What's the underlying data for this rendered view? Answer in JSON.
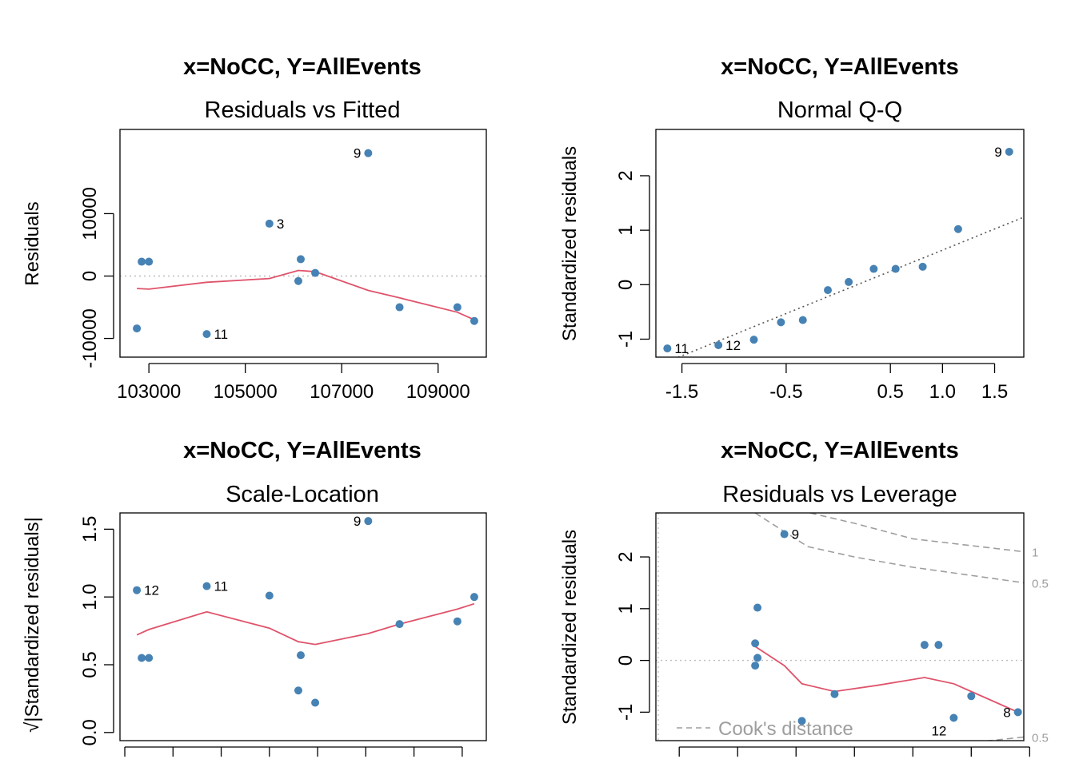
{
  "colors": {
    "points": "#4682b4",
    "smooth": "#df536b",
    "ref": "#bebebe",
    "qq": "#555555",
    "cook": "#9e9e9e"
  },
  "chart_data": [
    {
      "type": "scatter",
      "title": "x=NoCC, Y=AllEvents",
      "subtitle": "Residuals vs Fitted",
      "xlabel": "",
      "ylabel": "Residuals",
      "xlim": [
        102400,
        110000
      ],
      "ylim": [
        -13000,
        23500
      ],
      "xticks": [
        103000,
        105000,
        107000,
        109000
      ],
      "xtick_labels": [
        "103000",
        "105000",
        "107000",
        "109000"
      ],
      "yticks": [
        -10000,
        0,
        10000
      ],
      "ytick_labels": [
        "-10000",
        "0",
        "10000"
      ],
      "points": [
        {
          "x": 102750,
          "y": -8400,
          "label": ""
        },
        {
          "x": 102850,
          "y": 2300,
          "label": ""
        },
        {
          "x": 103000,
          "y": 2300,
          "label": ""
        },
        {
          "x": 104200,
          "y": -9300,
          "label": "11"
        },
        {
          "x": 105500,
          "y": 8400,
          "label": "3"
        },
        {
          "x": 106100,
          "y": -800,
          "label": ""
        },
        {
          "x": 106150,
          "y": 2700,
          "label": ""
        },
        {
          "x": 106450,
          "y": 500,
          "label": ""
        },
        {
          "x": 107550,
          "y": 19700,
          "label": "9"
        },
        {
          "x": 108200,
          "y": -5000,
          "label": ""
        },
        {
          "x": 109400,
          "y": -5000,
          "label": ""
        },
        {
          "x": 109750,
          "y": -7200,
          "label": ""
        }
      ],
      "smooth": [
        {
          "x": 102750,
          "y": -2000
        },
        {
          "x": 103000,
          "y": -2100
        },
        {
          "x": 104200,
          "y": -1000
        },
        {
          "x": 105500,
          "y": -400
        },
        {
          "x": 106100,
          "y": 900
        },
        {
          "x": 106450,
          "y": 700
        },
        {
          "x": 107550,
          "y": -2300
        },
        {
          "x": 108200,
          "y": -3500
        },
        {
          "x": 109400,
          "y": -5800
        },
        {
          "x": 109750,
          "y": -7000
        }
      ],
      "hline": 0
    },
    {
      "type": "scatter",
      "title": "x=NoCC, Y=AllEvents",
      "subtitle": "Normal Q-Q",
      "xlabel": "",
      "ylabel": "Standardized residuals",
      "xlim": [
        -1.75,
        1.78
      ],
      "ylim": [
        -1.33,
        2.85
      ],
      "xticks": [
        -1.5,
        -0.5,
        0.5,
        1.0,
        1.5
      ],
      "xtick_labels": [
        "-1.5",
        "-0.5",
        "0.5",
        "1.0",
        "1.5"
      ],
      "yticks": [
        -1,
        0,
        1,
        2
      ],
      "ytick_labels": [
        "-1",
        "0",
        "1",
        "2"
      ],
      "points": [
        {
          "x": -1.64,
          "y": -1.17,
          "label": "11"
        },
        {
          "x": -1.15,
          "y": -1.11,
          "label": "12"
        },
        {
          "x": -0.81,
          "y": -1.01,
          "label": ""
        },
        {
          "x": -0.55,
          "y": -0.69,
          "label": ""
        },
        {
          "x": -0.34,
          "y": -0.65,
          "label": ""
        },
        {
          "x": -0.1,
          "y": -0.1,
          "label": ""
        },
        {
          "x": 0.1,
          "y": 0.05,
          "label": ""
        },
        {
          "x": 0.34,
          "y": 0.29,
          "label": ""
        },
        {
          "x": 0.55,
          "y": 0.29,
          "label": ""
        },
        {
          "x": 0.81,
          "y": 0.33,
          "label": ""
        },
        {
          "x": 1.15,
          "y": 1.02,
          "label": ""
        },
        {
          "x": 1.64,
          "y": 2.44,
          "label": "9"
        }
      ],
      "refline": [
        {
          "x": -1.75,
          "y": -1.5
        },
        {
          "x": 1.78,
          "y": 1.24
        }
      ]
    },
    {
      "type": "scatter",
      "title": "x=NoCC, Y=AllEvents",
      "subtitle": "Scale-Location",
      "xlabel": "",
      "ylabel": "√|Standardized residuals|",
      "xlim": [
        102400,
        110000
      ],
      "ylim": [
        -0.06,
        1.62
      ],
      "xticks": [
        102500,
        103500,
        104500,
        105500,
        106500,
        107500,
        108500,
        109500
      ],
      "xtick_labels": [],
      "yticks": [
        0.0,
        0.5,
        1.0,
        1.5
      ],
      "ytick_labels": [
        "0.0",
        "0.5",
        "1.0",
        "1.5"
      ],
      "points": [
        {
          "x": 102750,
          "y": 1.05,
          "label": "12"
        },
        {
          "x": 102850,
          "y": 0.55,
          "label": ""
        },
        {
          "x": 103000,
          "y": 0.55,
          "label": ""
        },
        {
          "x": 104200,
          "y": 1.08,
          "label": "11"
        },
        {
          "x": 105500,
          "y": 1.01,
          "label": ""
        },
        {
          "x": 106100,
          "y": 0.31,
          "label": ""
        },
        {
          "x": 106150,
          "y": 0.57,
          "label": ""
        },
        {
          "x": 106450,
          "y": 0.22,
          "label": ""
        },
        {
          "x": 107550,
          "y": 1.56,
          "label": "9"
        },
        {
          "x": 108200,
          "y": 0.8,
          "label": ""
        },
        {
          "x": 109400,
          "y": 0.82,
          "label": ""
        },
        {
          "x": 109750,
          "y": 1.0,
          "label": ""
        }
      ],
      "smooth": [
        {
          "x": 102750,
          "y": 0.72
        },
        {
          "x": 103000,
          "y": 0.76
        },
        {
          "x": 104200,
          "y": 0.89
        },
        {
          "x": 105500,
          "y": 0.77
        },
        {
          "x": 106100,
          "y": 0.67
        },
        {
          "x": 106450,
          "y": 0.65
        },
        {
          "x": 107550,
          "y": 0.73
        },
        {
          "x": 108200,
          "y": 0.8
        },
        {
          "x": 109400,
          "y": 0.91
        },
        {
          "x": 109750,
          "y": 0.95
        }
      ]
    },
    {
      "type": "scatter",
      "title": "x=NoCC, Y=AllEvents",
      "subtitle": "Residuals vs Leverage",
      "xlabel": "",
      "ylabel": "Standardized residuals",
      "xlim": [
        0.08,
        0.395
      ],
      "ylim": [
        -1.55,
        2.85
      ],
      "xticks": [
        0.1,
        0.15,
        0.2,
        0.25,
        0.3,
        0.35,
        0.4
      ],
      "xtick_labels": [],
      "yticks": [
        -1,
        0,
        1,
        2
      ],
      "ytick_labels": [
        "-1",
        "0",
        "1",
        "2"
      ],
      "points": [
        {
          "x": 0.19,
          "y": 2.44,
          "label": "9"
        },
        {
          "x": 0.167,
          "y": 1.02,
          "label": ""
        },
        {
          "x": 0.165,
          "y": 0.33,
          "label": ""
        },
        {
          "x": 0.167,
          "y": 0.05,
          "label": ""
        },
        {
          "x": 0.165,
          "y": -0.1,
          "label": ""
        },
        {
          "x": 0.205,
          "y": -1.17,
          "label": ""
        },
        {
          "x": 0.233,
          "y": -0.65,
          "label": ""
        },
        {
          "x": 0.31,
          "y": 0.3,
          "label": ""
        },
        {
          "x": 0.322,
          "y": 0.3,
          "label": ""
        },
        {
          "x": 0.335,
          "y": -1.11,
          "label": "12"
        },
        {
          "x": 0.35,
          "y": -0.69,
          "label": ""
        },
        {
          "x": 0.39,
          "y": -1.0,
          "label": "8"
        }
      ],
      "smooth": [
        {
          "x": 0.165,
          "y": 0.27
        },
        {
          "x": 0.19,
          "y": -0.1
        },
        {
          "x": 0.205,
          "y": -0.45
        },
        {
          "x": 0.233,
          "y": -0.6
        },
        {
          "x": 0.27,
          "y": -0.48
        },
        {
          "x": 0.31,
          "y": -0.33
        },
        {
          "x": 0.335,
          "y": -0.45
        },
        {
          "x": 0.35,
          "y": -0.6
        },
        {
          "x": 0.39,
          "y": -1.0
        }
      ],
      "hline": 0,
      "vline": 0.082,
      "contours": [
        {
          "label": "1",
          "points": [
            {
              "x": 0.212,
              "y": 2.85
            },
            {
              "x": 0.25,
              "y": 2.65
            },
            {
              "x": 0.3,
              "y": 2.35
            },
            {
              "x": 0.395,
              "y": 2.1
            }
          ]
        },
        {
          "label": "0.5",
          "points": [
            {
              "x": 0.165,
              "y": 2.85
            },
            {
              "x": 0.21,
              "y": 2.2
            },
            {
              "x": 0.25,
              "y": 2.0
            },
            {
              "x": 0.3,
              "y": 1.8
            },
            {
              "x": 0.395,
              "y": 1.5
            }
          ]
        },
        {
          "label": "0.5",
          "points": [
            {
              "x": 0.345,
              "y": -1.6
            },
            {
              "x": 0.395,
              "y": -1.48
            }
          ]
        }
      ],
      "legend": {
        "label": "Cook's distance",
        "position": "bottom-left"
      }
    }
  ]
}
